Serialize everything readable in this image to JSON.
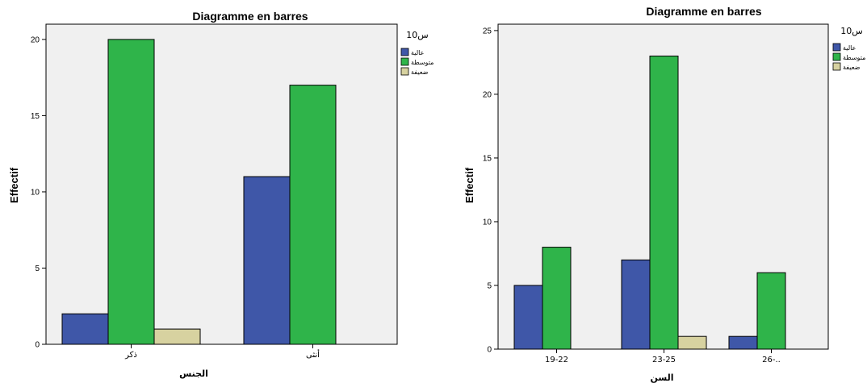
{
  "chart_data": [
    {
      "type": "bar",
      "title": "Diagramme en barres",
      "xlabel": "الجنس",
      "ylabel": "Effectif",
      "ylim": [
        0,
        21
      ],
      "yticks": [
        0,
        5,
        10,
        15,
        20
      ],
      "categories": [
        "ذكر",
        "أنثى"
      ],
      "legend_title": "س10",
      "legend_position": "right",
      "grid": false,
      "series": [
        {
          "name": "عالية",
          "color": "#3f57a8",
          "values": [
            2,
            11
          ]
        },
        {
          "name": "متوسطة",
          "color": "#2fb44a",
          "values": [
            20,
            17
          ]
        },
        {
          "name": "ضعيفة",
          "color": "#d7d2a0",
          "values": [
            1,
            0
          ]
        }
      ]
    },
    {
      "type": "bar",
      "title": "Diagramme en barres",
      "xlabel": "السن",
      "ylabel": "Effectif",
      "ylim": [
        0,
        25.5
      ],
      "yticks": [
        0,
        5,
        10,
        15,
        20,
        25
      ],
      "categories": [
        "19-22",
        "23-25",
        "26-.."
      ],
      "legend_title": "س10",
      "legend_position": "right",
      "grid": false,
      "series": [
        {
          "name": "عالية",
          "color": "#3f57a8",
          "values": [
            5,
            7,
            1
          ]
        },
        {
          "name": "متوسطة",
          "color": "#2fb44a",
          "values": [
            8,
            23,
            6
          ]
        },
        {
          "name": "ضعيفة",
          "color": "#d7d2a0",
          "values": [
            0,
            1,
            0
          ]
        }
      ]
    }
  ]
}
